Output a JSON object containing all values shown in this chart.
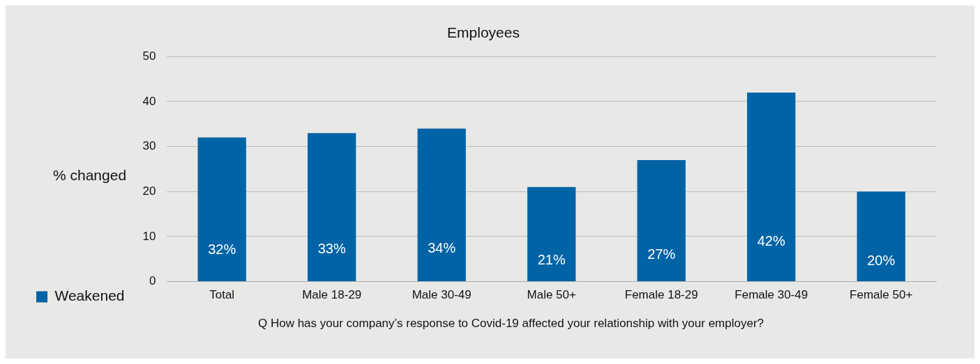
{
  "chart_data": {
    "type": "bar",
    "title": "Employees",
    "ylabel": "% changed",
    "categories": [
      "Total",
      "Male 18-29",
      "Male 30-49",
      "Male 50+",
      "Female 18-29",
      "Female 30-49",
      "Female 50+"
    ],
    "series": [
      {
        "name": "Weakened",
        "color": "#0063a6",
        "values": [
          32,
          33,
          34,
          21,
          27,
          42,
          20
        ],
        "value_labels": [
          "32%",
          "33%",
          "34%",
          "21%",
          "27%",
          "42%",
          "20%"
        ]
      }
    ],
    "ylim": [
      0,
      50
    ],
    "yticks": [
      0,
      10,
      20,
      30,
      40,
      50
    ],
    "grid": "y",
    "legend": "bottom left",
    "annotations": [
      "Q How has your company’s response to Covid-19 affected your relationship with your employer?"
    ]
  }
}
